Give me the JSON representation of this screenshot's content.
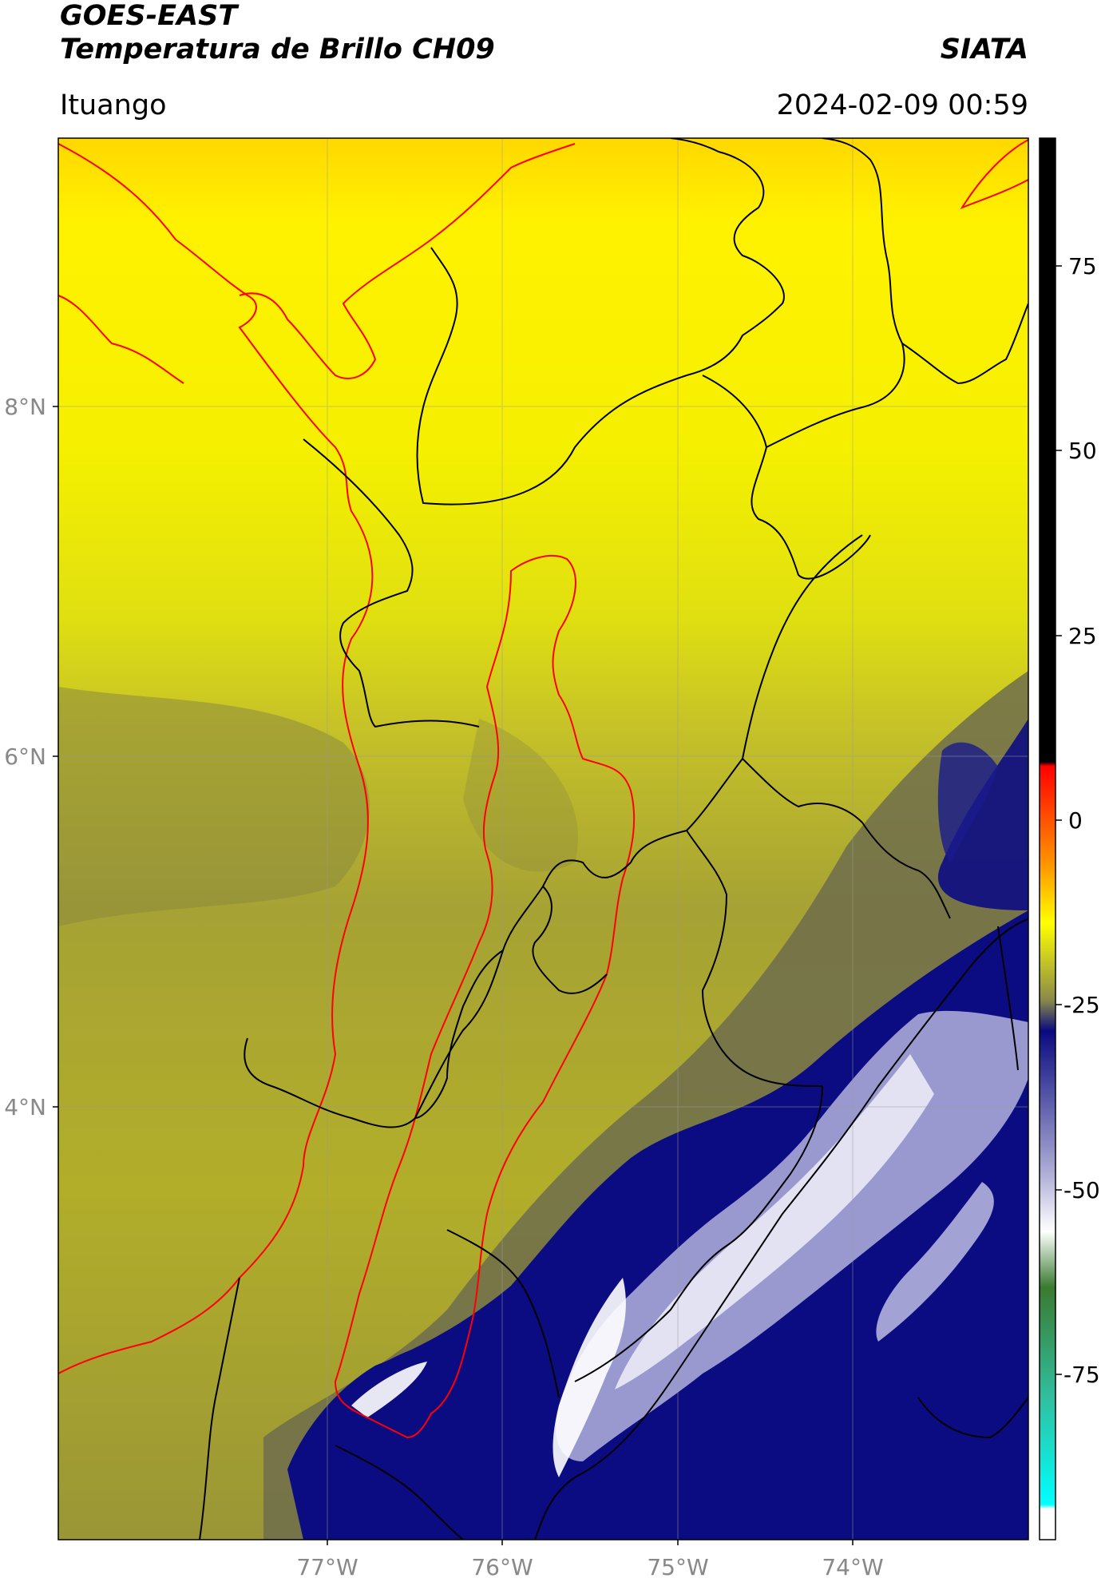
{
  "header": {
    "title": "GOES-EAST",
    "subtitle": "Temperatura de Brillo CH09",
    "organization": "SIATA",
    "location": "Ituango",
    "datetime": "2024-02-09 00:59"
  },
  "map": {
    "latitude_labels": [
      "8°N",
      "6°N",
      "4°N"
    ],
    "latitude_values": [
      8,
      6,
      4
    ],
    "longitude_labels": [
      "77°W",
      "76°W",
      "75°W",
      "74°W"
    ],
    "longitude_values": [
      -77,
      -76,
      -75,
      -74
    ],
    "extent": {
      "lon_min": -78.53,
      "lon_max": -72.98,
      "lat_min": 1.47,
      "lat_max": 9.55
    },
    "colors": {
      "warm_yellow": "#ffff00",
      "olive": "#8f8f3a",
      "deep_blue": "#0a0a80",
      "cloud_white": "#f0f0f8",
      "state_border": "#000000",
      "basin_border": "#ff0000"
    }
  },
  "colorbar": {
    "ticks": [
      "75",
      "50",
      "25",
      "0",
      "-25",
      "-50",
      "-75"
    ],
    "tick_values": [
      75,
      50,
      25,
      0,
      -25,
      -50,
      -75
    ],
    "range": [
      -92,
      90
    ],
    "stops": [
      {
        "value": 90,
        "color": "#000000"
      },
      {
        "value": 9,
        "color": "#000000"
      },
      {
        "value": 8.5,
        "color": "#ff0000"
      },
      {
        "value": -5,
        "color": "#ff9900"
      },
      {
        "value": -12,
        "color": "#ffff00"
      },
      {
        "value": -22,
        "color": "#8a8a4a"
      },
      {
        "value": -26,
        "color": "#0a0a80"
      },
      {
        "value": -45,
        "color": "#b0b0d8"
      },
      {
        "value": -52,
        "color": "#ffffff"
      },
      {
        "value": -60,
        "color": "#3a7a30"
      },
      {
        "value": -75,
        "color": "#30c0a0"
      },
      {
        "value": -88,
        "color": "#00ffff"
      },
      {
        "value": -88.5,
        "color": "#ffffff"
      },
      {
        "value": -92,
        "color": "#ffffff"
      }
    ]
  }
}
